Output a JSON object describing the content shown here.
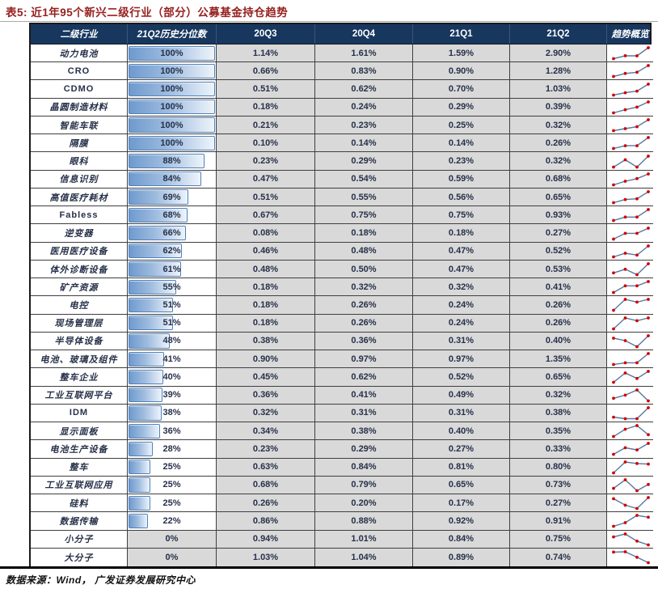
{
  "title": "表5:  近1年95个新兴二级行业（部分）公募基金持仓趋势",
  "source_note": "数据来源：Wind， 广发证券发展研究中心",
  "colors": {
    "header_bg": "#17375E",
    "title_red": "#96201F",
    "cell_gray": "#D9D9D9",
    "bar_border": "#4F81BD",
    "bar_fill_left": "#6F9ACE",
    "sparkline_line": "#5878A0",
    "sparkline_dot": "#D10000"
  },
  "icons": {
    "trend_cell_icon": "sparkline-mini-line-chart-with-red-dots"
  },
  "table": {
    "headers": [
      "二级行业",
      "21Q2历史分位数",
      "20Q3",
      "20Q4",
      "21Q1",
      "21Q2",
      "趋势概览"
    ],
    "rows": [
      {
        "industry": "动力电池",
        "percentile": 100,
        "percentile_label": "100%",
        "q_values": [
          "1.14%",
          "1.61%",
          "1.59%",
          "2.90%"
        ]
      },
      {
        "industry": "CRO",
        "percentile": 100,
        "percentile_label": "100%",
        "q_values": [
          "0.66%",
          "0.83%",
          "0.90%",
          "1.28%"
        ]
      },
      {
        "industry": "CDMO",
        "percentile": 100,
        "percentile_label": "100%",
        "q_values": [
          "0.51%",
          "0.62%",
          "0.70%",
          "1.03%"
        ]
      },
      {
        "industry": "晶圆制造材料",
        "percentile": 100,
        "percentile_label": "100%",
        "q_values": [
          "0.18%",
          "0.24%",
          "0.29%",
          "0.39%"
        ]
      },
      {
        "industry": "智能车联",
        "percentile": 100,
        "percentile_label": "100%",
        "q_values": [
          "0.21%",
          "0.23%",
          "0.25%",
          "0.32%"
        ]
      },
      {
        "industry": "隔膜",
        "percentile": 100,
        "percentile_label": "100%",
        "q_values": [
          "0.10%",
          "0.14%",
          "0.14%",
          "0.26%"
        ]
      },
      {
        "industry": "眼科",
        "percentile": 88,
        "percentile_label": "88%",
        "q_values": [
          "0.23%",
          "0.29%",
          "0.23%",
          "0.32%"
        ]
      },
      {
        "industry": "信息识别",
        "percentile": 84,
        "percentile_label": "84%",
        "q_values": [
          "0.47%",
          "0.54%",
          "0.59%",
          "0.68%"
        ]
      },
      {
        "industry": "高值医疗耗材",
        "percentile": 69,
        "percentile_label": "69%",
        "q_values": [
          "0.51%",
          "0.55%",
          "0.56%",
          "0.65%"
        ]
      },
      {
        "industry": "Fabless",
        "percentile": 68,
        "percentile_label": "68%",
        "q_values": [
          "0.67%",
          "0.75%",
          "0.75%",
          "0.93%"
        ]
      },
      {
        "industry": "逆变器",
        "percentile": 66,
        "percentile_label": "66%",
        "q_values": [
          "0.08%",
          "0.18%",
          "0.18%",
          "0.27%"
        ]
      },
      {
        "industry": "医用医疗设备",
        "percentile": 62,
        "percentile_label": "62%",
        "q_values": [
          "0.46%",
          "0.48%",
          "0.47%",
          "0.52%"
        ]
      },
      {
        "industry": "体外诊断设备",
        "percentile": 61,
        "percentile_label": "61%",
        "q_values": [
          "0.48%",
          "0.50%",
          "0.47%",
          "0.53%"
        ]
      },
      {
        "industry": "矿产资源",
        "percentile": 55,
        "percentile_label": "55%",
        "q_values": [
          "0.18%",
          "0.32%",
          "0.32%",
          "0.41%"
        ]
      },
      {
        "industry": "电控",
        "percentile": 51,
        "percentile_label": "51%",
        "q_values": [
          "0.18%",
          "0.26%",
          "0.24%",
          "0.26%"
        ]
      },
      {
        "industry": "现场管理层",
        "percentile": 51,
        "percentile_label": "51%",
        "q_values": [
          "0.18%",
          "0.26%",
          "0.24%",
          "0.26%"
        ]
      },
      {
        "industry": "半导体设备",
        "percentile": 48,
        "percentile_label": "48%",
        "q_values": [
          "0.38%",
          "0.36%",
          "0.31%",
          "0.40%"
        ]
      },
      {
        "industry": "电池、玻璃及组件",
        "percentile": 41,
        "percentile_label": "41%",
        "q_values": [
          "0.90%",
          "0.97%",
          "0.97%",
          "1.35%"
        ]
      },
      {
        "industry": "整车企业",
        "percentile": 40,
        "percentile_label": "40%",
        "q_values": [
          "0.45%",
          "0.62%",
          "0.52%",
          "0.65%"
        ]
      },
      {
        "industry": "工业互联网平台",
        "percentile": 39,
        "percentile_label": "39%",
        "q_values": [
          "0.36%",
          "0.41%",
          "0.49%",
          "0.32%"
        ]
      },
      {
        "industry": "IDM",
        "percentile": 38,
        "percentile_label": "38%",
        "q_values": [
          "0.32%",
          "0.31%",
          "0.31%",
          "0.38%"
        ]
      },
      {
        "industry": "显示面板",
        "percentile": 36,
        "percentile_label": "36%",
        "q_values": [
          "0.34%",
          "0.38%",
          "0.40%",
          "0.35%"
        ]
      },
      {
        "industry": "电池生产设备",
        "percentile": 28,
        "percentile_label": "28%",
        "q_values": [
          "0.23%",
          "0.29%",
          "0.27%",
          "0.33%"
        ]
      },
      {
        "industry": "整车",
        "percentile": 25,
        "percentile_label": "25%",
        "q_values": [
          "0.63%",
          "0.84%",
          "0.81%",
          "0.80%"
        ]
      },
      {
        "industry": "工业互联网应用",
        "percentile": 25,
        "percentile_label": "25%",
        "q_values": [
          "0.68%",
          "0.79%",
          "0.65%",
          "0.73%"
        ]
      },
      {
        "industry": "硅料",
        "percentile": 25,
        "percentile_label": "25%",
        "q_values": [
          "0.26%",
          "0.20%",
          "0.17%",
          "0.27%"
        ]
      },
      {
        "industry": "数据传输",
        "percentile": 22,
        "percentile_label": "22%",
        "q_values": [
          "0.86%",
          "0.88%",
          "0.92%",
          "0.91%"
        ]
      },
      {
        "industry": "小分子",
        "percentile": 0,
        "percentile_label": "0%",
        "q_values": [
          "0.94%",
          "1.01%",
          "0.84%",
          "0.75%"
        ]
      },
      {
        "industry": "大分子",
        "percentile": 0,
        "percentile_label": "0%",
        "q_values": [
          "1.03%",
          "1.04%",
          "0.89%",
          "0.74%"
        ]
      }
    ]
  }
}
